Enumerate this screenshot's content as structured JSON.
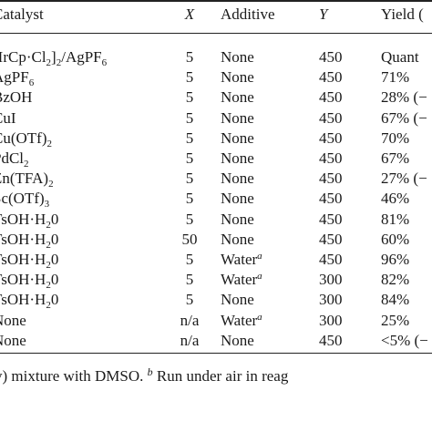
{
  "table": {
    "headers": {
      "catalyst": "Catalyst",
      "x": "X",
      "additive": "Additive",
      "y": "Y",
      "yield": "Yield ("
    },
    "rows": [
      {
        "catalyst": [
          "[IrCp·Cl",
          "2",
          "]",
          "2",
          "/AgPF",
          "6"
        ],
        "x": "5",
        "additive": "None",
        "note": "",
        "y": "450",
        "yield": "Quant"
      },
      {
        "catalyst": [
          "AgPF",
          "6"
        ],
        "x": "5",
        "additive": "None",
        "note": "",
        "y": "450",
        "yield": "71%"
      },
      {
        "catalyst": [
          "BzOH"
        ],
        "x": "5",
        "additive": "None",
        "note": "",
        "y": "450",
        "yield": "28% (−"
      },
      {
        "catalyst": [
          "CuI"
        ],
        "x": "5",
        "additive": "None",
        "note": "",
        "y": "450",
        "yield": "67% (−"
      },
      {
        "catalyst": [
          "Cu(OTf)",
          "2"
        ],
        "x": "5",
        "additive": "None",
        "note": "",
        "y": "450",
        "yield": "70%"
      },
      {
        "catalyst": [
          "PdCl",
          "2"
        ],
        "x": "5",
        "additive": "None",
        "note": "",
        "y": "450",
        "yield": "67%"
      },
      {
        "catalyst": [
          "Zn(TFA)",
          "2"
        ],
        "x": "5",
        "additive": "None",
        "note": "",
        "y": "450",
        "yield": "27% (−"
      },
      {
        "catalyst": [
          "Sc(OTf)",
          "3"
        ],
        "x": "5",
        "additive": "None",
        "note": "",
        "y": "450",
        "yield": "46%"
      },
      {
        "catalyst": [
          "TsOH·H",
          "2",
          "0"
        ],
        "x": "5",
        "additive": "None",
        "note": "",
        "y": "450",
        "yield": "81%"
      },
      {
        "catalyst": [
          "TsOH·H",
          "2",
          "0"
        ],
        "x": "50",
        "additive": "None",
        "note": "",
        "y": "450",
        "yield": "60%"
      },
      {
        "catalyst": [
          "TsOH·H",
          "2",
          "0"
        ],
        "x": "5",
        "additive": "Water",
        "note": "a",
        "y": "450",
        "yield": "96%"
      },
      {
        "catalyst": [
          "TsOH·H",
          "2",
          "0"
        ],
        "x": "5",
        "additive": "Water",
        "note": "a",
        "y": "300",
        "yield": "82%"
      },
      {
        "catalyst": [
          "TsOH·H",
          "2",
          "0"
        ],
        "x": "5",
        "additive": "None",
        "note": "",
        "y": "300",
        "yield": "84%"
      },
      {
        "catalyst": [
          "None"
        ],
        "x": "n/a",
        "additive": "Water",
        "note": "a",
        "y": "300",
        "yield": "25%"
      },
      {
        "catalyst": [
          "None"
        ],
        "x": "n/a",
        "additive": "None",
        "note": "",
        "y": "450",
        "yield": "<5% (−"
      }
    ]
  },
  "footnote": {
    "text_a": "v) mixture with DMSO. ",
    "marker_b": "b",
    "text_b": " Run under air in reag"
  }
}
